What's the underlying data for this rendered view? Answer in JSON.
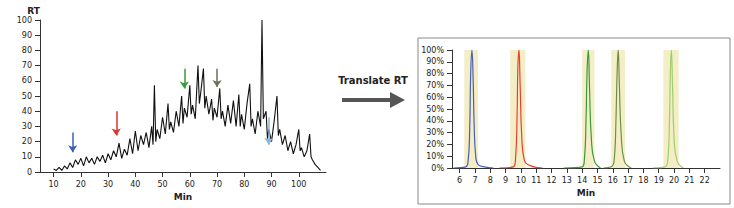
{
  "chart_data": [
    {
      "type": "line",
      "ylabel": "RT",
      "xlabel": "Min",
      "color": "#111111",
      "x": [
        10,
        11,
        12,
        13,
        14,
        15,
        16,
        17,
        18,
        19,
        20,
        21,
        22,
        23,
        24,
        25,
        26,
        27,
        28,
        29,
        30,
        31,
        32,
        33,
        34,
        35,
        36,
        37,
        38,
        39,
        40,
        41,
        42,
        43,
        44,
        45,
        46,
        46.5,
        47,
        47.5,
        48,
        49,
        50,
        51,
        52,
        52.5,
        53,
        54,
        55,
        56,
        57,
        57.5,
        58,
        59,
        60,
        60.5,
        61,
        62,
        63,
        63.5,
        64,
        65,
        65.5,
        66,
        67,
        68,
        68.5,
        69,
        70,
        71,
        71.5,
        72,
        73,
        74,
        75,
        76,
        77,
        78,
        78.5,
        79,
        80,
        81,
        82,
        82.5,
        83,
        84,
        85,
        86,
        86.5,
        87,
        88,
        88.5,
        89,
        90,
        91,
        92,
        92.5,
        93,
        94,
        95,
        96,
        97,
        98,
        99,
        100,
        100.5,
        101,
        102,
        103,
        104,
        104.5,
        105,
        106,
        107,
        108
      ],
      "values": [
        2,
        1,
        3,
        1,
        4,
        2,
        6,
        3,
        8,
        5,
        9,
        4,
        10,
        6,
        9,
        5,
        10,
        7,
        11,
        6,
        12,
        8,
        14,
        10,
        19,
        9,
        15,
        11,
        22,
        12,
        27,
        14,
        24,
        18,
        26,
        16,
        30,
        18,
        57,
        20,
        28,
        22,
        36,
        25,
        45,
        28,
        33,
        26,
        40,
        30,
        50,
        32,
        42,
        36,
        57,
        38,
        44,
        35,
        70,
        45,
        52,
        68,
        42,
        50,
        38,
        48,
        34,
        42,
        36,
        55,
        35,
        40,
        30,
        44,
        32,
        47,
        30,
        51,
        30,
        38,
        28,
        45,
        58,
        30,
        35,
        25,
        40,
        30,
        100,
        35,
        40,
        22,
        28,
        20,
        34,
        50,
        24,
        28,
        18,
        24,
        14,
        20,
        12,
        18,
        28,
        14,
        16,
        10,
        14,
        25,
        10,
        8,
        5,
        3,
        1
      ],
      "xlim": [
        5,
        110
      ],
      "xticks": [
        10,
        20,
        30,
        40,
        50,
        60,
        70,
        80,
        90,
        100
      ],
      "ylim": [
        0,
        100
      ],
      "yticks": [
        0,
        10,
        20,
        30,
        40,
        50,
        60,
        70,
        80,
        90,
        100
      ],
      "grid": false,
      "arrows": [
        {
          "x": 17,
          "y_start": 26,
          "y_end": 13,
          "color": "#3d5fb5"
        },
        {
          "x": 33,
          "y_start": 40,
          "y_end": 24,
          "color": "#d9342b"
        },
        {
          "x": 58,
          "y_start": 68,
          "y_end": 55,
          "color": "#3a9a3a"
        },
        {
          "x": 70,
          "y_start": 68,
          "y_end": 56,
          "color": "#6f6f5a"
        },
        {
          "x": 89,
          "y_start": 36,
          "y_end": 18,
          "color": "#8ab4dc"
        }
      ],
      "annotations": [
        "Translate RT"
      ]
    },
    {
      "type": "line",
      "xlabel": "Min",
      "xlim": [
        5.5,
        23
      ],
      "xticks": [
        6,
        7,
        8,
        9,
        10,
        11,
        12,
        13,
        14,
        15,
        16,
        17,
        18,
        19,
        20,
        21,
        22
      ],
      "ylim": [
        0,
        100
      ],
      "yticks": [
        {
          "value": 0,
          "label": "0%"
        },
        {
          "value": 10,
          "label": "10%"
        },
        {
          "value": 20,
          "label": "20%"
        },
        {
          "value": 30,
          "label": "30%"
        },
        {
          "value": 40,
          "label": "40%"
        },
        {
          "value": 50,
          "label": "50%"
        },
        {
          "value": 60,
          "label": "60%"
        },
        {
          "value": 70,
          "label": "70%"
        },
        {
          "value": 80,
          "label": "80%"
        },
        {
          "value": 90,
          "label": "90%"
        },
        {
          "value": 100,
          "label": "100%"
        }
      ],
      "grid": false,
      "bands": [
        [
          6.3,
          7.2
        ],
        [
          9.3,
          10.3
        ],
        [
          14.0,
          14.8
        ],
        [
          15.9,
          16.8
        ],
        [
          19.3,
          20.3
        ]
      ],
      "series": [
        {
          "color": "#4a5fb5",
          "x": [
            5.6,
            6.4,
            6.55,
            6.65,
            6.72,
            6.8,
            6.88,
            6.95,
            7.05,
            7.2,
            7.6,
            8.2
          ],
          "values": [
            0,
            1,
            6,
            30,
            80,
            100,
            75,
            35,
            10,
            3,
            1,
            0
          ]
        },
        {
          "color": "#e8402a",
          "x": [
            8.6,
            9.5,
            9.65,
            9.75,
            9.8,
            9.87,
            9.95,
            10.05,
            10.2,
            10.6,
            11.4
          ],
          "values": [
            0,
            1,
            8,
            45,
            85,
            100,
            70,
            28,
            8,
            2,
            0
          ]
        },
        {
          "color": "#3a9a3a",
          "x": [
            12.8,
            14.0,
            14.15,
            14.25,
            14.32,
            14.4,
            14.48,
            14.6,
            14.8,
            15.2
          ],
          "values": [
            0,
            1,
            8,
            40,
            82,
            100,
            68,
            25,
            6,
            0
          ]
        },
        {
          "color": "#6f8f45",
          "x": [
            15.4,
            15.9,
            16.1,
            16.2,
            16.28,
            16.35,
            16.43,
            16.55,
            16.75,
            17.2
          ],
          "values": [
            0,
            1,
            8,
            38,
            80,
            100,
            70,
            28,
            6,
            0
          ]
        },
        {
          "color": "#9ecf6a",
          "x": [
            18.6,
            19.4,
            19.6,
            19.7,
            19.76,
            19.82,
            19.9,
            20.0,
            20.2,
            20.6
          ],
          "values": [
            0,
            1,
            8,
            40,
            82,
            100,
            70,
            26,
            6,
            0
          ]
        }
      ]
    }
  ]
}
